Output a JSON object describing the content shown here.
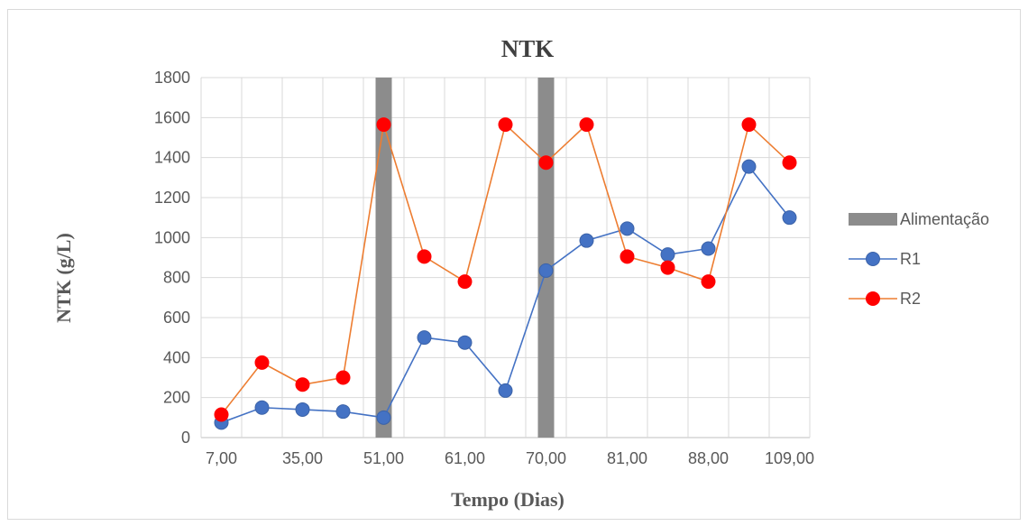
{
  "chart_data": {
    "type": "line",
    "title": "NTK",
    "xlabel": "Tempo (Dias)",
    "ylabel": "NTK (g/L)",
    "ylim": [
      0,
      1800
    ],
    "yticks": [
      0,
      200,
      400,
      600,
      800,
      1000,
      1200,
      1400,
      1600,
      1800
    ],
    "grid": true,
    "legend_position": "right",
    "categories": [
      "7,00",
      "",
      "35,00",
      "",
      "51,00",
      "",
      "61,00",
      "",
      "70,00",
      "",
      "81,00",
      "",
      "88,00",
      "",
      "109,00"
    ],
    "series": [
      {
        "name": "Alimentação",
        "type": "bar",
        "color": "#8c8c8c",
        "values": [
          null,
          null,
          null,
          null,
          1800,
          null,
          null,
          null,
          1800,
          null,
          null,
          null,
          null,
          null,
          null
        ]
      },
      {
        "name": "R1",
        "type": "line",
        "color": "#4472c4",
        "values": [
          75,
          150,
          140,
          130,
          100,
          500,
          475,
          235,
          835,
          985,
          1045,
          915,
          945,
          1355,
          1100
        ]
      },
      {
        "name": "R2",
        "type": "line",
        "color": "#ed7d31",
        "marker_color": "#ff0000",
        "values": [
          115,
          375,
          265,
          300,
          1565,
          905,
          780,
          1565,
          1375,
          1565,
          905,
          850,
          780,
          1565,
          1375
        ]
      }
    ]
  }
}
